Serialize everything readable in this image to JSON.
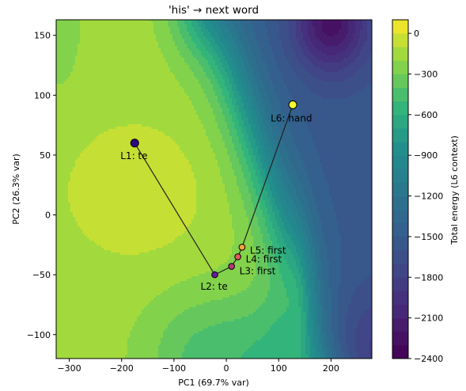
{
  "chart_data": {
    "type": "contour",
    "title": "'his' → next word",
    "xlabel": "PC1 (69.7% var)",
    "ylabel": "PC2 (26.3% var)",
    "colorbar_label": "Total energy (L6 context)",
    "colormap": "viridis",
    "xlim": [
      -325,
      278
    ],
    "ylim": [
      -120,
      163
    ],
    "xticks": [
      -300,
      -200,
      -100,
      0,
      100,
      200
    ],
    "yticks": [
      -100,
      -50,
      0,
      50,
      100,
      150
    ],
    "colorbar_range": [
      -2400,
      100
    ],
    "colorbar_ticks": [
      0,
      -300,
      -600,
      -900,
      -1200,
      -1500,
      -1800,
      -2100,
      -2400
    ],
    "grid": false,
    "trajectory": [
      {
        "label": "L1: te",
        "x": -175,
        "y": 60,
        "color": "#2d0a84"
      },
      {
        "label": "L2: te",
        "x": -22,
        "y": -50,
        "color": "#6a1b9a"
      },
      {
        "label": "L3: first",
        "x": 10,
        "y": -43,
        "color": "#b5367a"
      },
      {
        "label": "L4: first",
        "x": 22,
        "y": -35,
        "color": "#e45a5a"
      },
      {
        "label": "L5: first",
        "x": 30,
        "y": -27,
        "color": "#f8a23c"
      },
      {
        "label": "L6: hand",
        "x": 127,
        "y": 92,
        "color": "#f8f830"
      }
    ]
  }
}
